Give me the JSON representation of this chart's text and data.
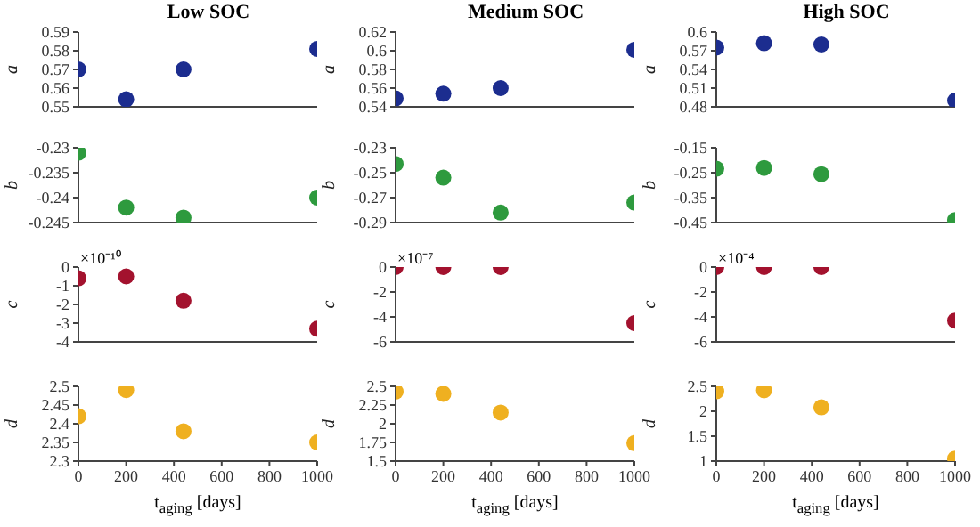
{
  "chart_data": [
    {
      "type": "scatter",
      "title": "Low SOC",
      "ylabel": "a",
      "x": [
        0,
        200,
        440,
        1000
      ],
      "series": [
        {
          "color": "#1c2d8f",
          "values": [
            0.57,
            0.554,
            0.57,
            0.581
          ]
        }
      ],
      "xlim": [
        0,
        1000
      ],
      "xticks": [
        0,
        200,
        400,
        600,
        800,
        1000
      ],
      "ylim": [
        0.55,
        0.59
      ],
      "yticks": [
        0.55,
        0.56,
        0.57,
        0.58,
        0.59
      ],
      "tick_labels": "y",
      "marker": "circle"
    },
    {
      "type": "scatter",
      "title": "Medium SOC",
      "ylabel": "a",
      "x": [
        0,
        200,
        440,
        1000
      ],
      "series": [
        {
          "color": "#1c2d8f",
          "values": [
            0.549,
            0.554,
            0.56,
            0.601
          ]
        }
      ],
      "xlim": [
        0,
        1000
      ],
      "xticks": [
        0,
        200,
        400,
        600,
        800,
        1000
      ],
      "ylim": [
        0.54,
        0.62
      ],
      "yticks": [
        0.54,
        0.56,
        0.58,
        0.6,
        0.62
      ],
      "tick_labels": "y",
      "marker": "circle"
    },
    {
      "type": "scatter",
      "title": "High SOC",
      "ylabel": "a",
      "x": [
        0,
        200,
        440,
        1000
      ],
      "series": [
        {
          "color": "#1c2d8f",
          "values": [
            0.575,
            0.582,
            0.58,
            0.49
          ]
        }
      ],
      "xlim": [
        0,
        1000
      ],
      "xticks": [
        0,
        200,
        400,
        600,
        800,
        1000
      ],
      "ylim": [
        0.48,
        0.6
      ],
      "yticks": [
        0.48,
        0.51,
        0.54,
        0.57,
        0.6
      ],
      "tick_labels": "y",
      "marker": "circle"
    },
    {
      "type": "scatter",
      "ylabel": "b",
      "x": [
        0,
        200,
        440,
        1000
      ],
      "series": [
        {
          "color": "#2e9a3e",
          "values": [
            -0.231,
            -0.242,
            -0.244,
            -0.24
          ]
        }
      ],
      "xlim": [
        0,
        1000
      ],
      "xticks": [
        0,
        200,
        400,
        600,
        800,
        1000
      ],
      "ylim": [
        -0.245,
        -0.23
      ],
      "yticks": [
        -0.245,
        -0.24,
        -0.235,
        -0.23
      ],
      "tick_labels": "y",
      "marker": "circle"
    },
    {
      "type": "scatter",
      "ylabel": "b",
      "x": [
        0,
        200,
        440,
        1000
      ],
      "series": [
        {
          "color": "#2e9a3e",
          "values": [
            -0.243,
            -0.254,
            -0.282,
            -0.274
          ]
        }
      ],
      "xlim": [
        0,
        1000
      ],
      "xticks": [
        0,
        200,
        400,
        600,
        800,
        1000
      ],
      "ylim": [
        -0.29,
        -0.23
      ],
      "yticks": [
        -0.29,
        -0.27,
        -0.25,
        -0.23
      ],
      "tick_labels": "y",
      "marker": "circle"
    },
    {
      "type": "scatter",
      "ylabel": "b",
      "x": [
        0,
        200,
        440,
        1000
      ],
      "series": [
        {
          "color": "#2e9a3e",
          "values": [
            -0.234,
            -0.231,
            -0.256,
            -0.44
          ]
        }
      ],
      "xlim": [
        0,
        1000
      ],
      "xticks": [
        0,
        200,
        400,
        600,
        800,
        1000
      ],
      "ylim": [
        -0.45,
        -0.15
      ],
      "yticks": [
        -0.45,
        -0.35,
        -0.25,
        -0.15
      ],
      "tick_labels": "y",
      "marker": "circle"
    },
    {
      "type": "scatter",
      "ylabel": "c",
      "annotations": [
        "×10⁻¹⁰"
      ],
      "x": [
        0,
        200,
        440,
        1000
      ],
      "series": [
        {
          "color": "#a3122e",
          "values": [
            -0.6,
            -0.5,
            -1.8,
            -3.3
          ]
        }
      ],
      "xlim": [
        0,
        1000
      ],
      "xticks": [
        0,
        200,
        400,
        600,
        800,
        1000
      ],
      "ylim": [
        -4,
        0
      ],
      "yticks": [
        -4,
        -3,
        -2,
        -1,
        0
      ],
      "tick_labels": "y",
      "marker": "circle"
    },
    {
      "type": "scatter",
      "ylabel": "c",
      "annotations": [
        "×10⁻⁷"
      ],
      "x": [
        0,
        200,
        440,
        1000
      ],
      "series": [
        {
          "color": "#a3122e",
          "values": [
            0,
            0,
            0,
            -4.5
          ]
        }
      ],
      "xlim": [
        0,
        1000
      ],
      "xticks": [
        0,
        200,
        400,
        600,
        800,
        1000
      ],
      "ylim": [
        -6,
        0
      ],
      "yticks": [
        -6,
        -4,
        -2,
        0
      ],
      "tick_labels": "y",
      "marker": "circle"
    },
    {
      "type": "scatter",
      "ylabel": "c",
      "annotations": [
        "×10⁻⁴"
      ],
      "x": [
        0,
        200,
        440,
        1000
      ],
      "series": [
        {
          "color": "#a3122e",
          "values": [
            0,
            0,
            0,
            -4.3
          ]
        }
      ],
      "xlim": [
        0,
        1000
      ],
      "xticks": [
        0,
        200,
        400,
        600,
        800,
        1000
      ],
      "ylim": [
        -6,
        0
      ],
      "yticks": [
        -6,
        -4,
        -2,
        0
      ],
      "tick_labels": "y",
      "marker": "circle"
    },
    {
      "type": "scatter",
      "ylabel": "d",
      "xlabel": "t$_{aging}$ [days]",
      "x": [
        0,
        200,
        440,
        1000
      ],
      "series": [
        {
          "color": "#efb020",
          "values": [
            2.42,
            2.49,
            2.38,
            2.35
          ]
        }
      ],
      "xlim": [
        0,
        1000
      ],
      "xticks": [
        0,
        200,
        400,
        600,
        800,
        1000
      ],
      "ylim": [
        2.3,
        2.5
      ],
      "yticks": [
        2.3,
        2.35,
        2.4,
        2.45,
        2.5
      ],
      "marker": "circle"
    },
    {
      "type": "scatter",
      "ylabel": "d",
      "xlabel": "t$_{aging}$ [days]",
      "x": [
        0,
        200,
        440,
        1000
      ],
      "series": [
        {
          "color": "#efb020",
          "values": [
            2.43,
            2.4,
            2.15,
            1.74
          ]
        }
      ],
      "xlim": [
        0,
        1000
      ],
      "xticks": [
        0,
        200,
        400,
        600,
        800,
        1000
      ],
      "ylim": [
        1.5,
        2.5
      ],
      "yticks": [
        1.5,
        1.75,
        2,
        2.25,
        2.5
      ],
      "marker": "circle"
    },
    {
      "type": "scatter",
      "ylabel": "d",
      "xlabel": "t$_{aging}$ [days]",
      "x": [
        0,
        200,
        440,
        1000
      ],
      "series": [
        {
          "color": "#efb020",
          "values": [
            2.4,
            2.42,
            2.08,
            1.05
          ]
        }
      ],
      "xlim": [
        0,
        1000
      ],
      "xticks": [
        0,
        200,
        400,
        600,
        800,
        1000
      ],
      "ylim": [
        1,
        2.5
      ],
      "yticks": [
        1,
        1.5,
        2,
        2.5
      ],
      "marker": "circle"
    }
  ]
}
